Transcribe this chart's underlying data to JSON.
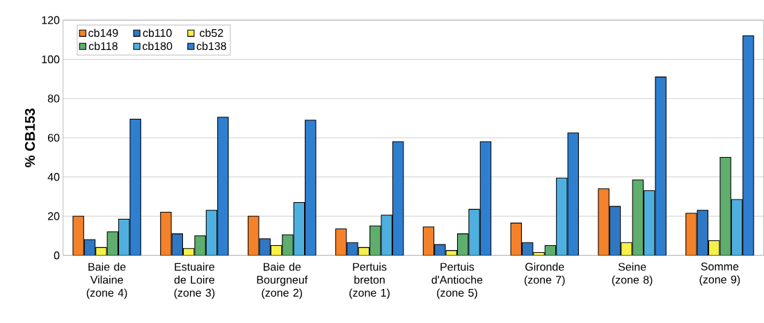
{
  "chart_data": {
    "type": "bar",
    "ylabel": "% CB153",
    "categories": [
      "Baie de Vilaine (zone 4)",
      "Estuaire de Loire (zone 3)",
      "Baie de Bourgneuf (zone 2)",
      "Pertuis breton (zone 1)",
      "Pertuis d'Antioche (zone 5)",
      "Gironde (zone 7)",
      "Seine (zone 8)",
      "Somme (zone 9)"
    ],
    "series": [
      {
        "name": "cb149",
        "color": "#f4822a",
        "values": [
          20,
          22,
          20,
          13.5,
          14.5,
          16.5,
          34,
          21.5
        ]
      },
      {
        "name": "cb110",
        "color": "#2f78c4",
        "values": [
          8,
          11,
          8.5,
          6.5,
          5.5,
          6.5,
          25,
          23
        ]
      },
      {
        "name": "cb52",
        "color": "#f6f04a",
        "values": [
          4,
          3.5,
          5,
          4,
          2.5,
          1.5,
          6.5,
          7.5
        ]
      },
      {
        "name": "cb118",
        "color": "#5fae6e",
        "values": [
          12,
          10,
          10.5,
          15,
          11,
          5,
          38.5,
          50
        ]
      },
      {
        "name": "cb180",
        "color": "#4fb0e0",
        "values": [
          18.5,
          23,
          27,
          20.5,
          23.5,
          39.5,
          33,
          28.5
        ]
      },
      {
        "name": "cb138",
        "color": "#2e7fd0",
        "values": [
          69.5,
          70.5,
          69,
          58,
          58,
          62.5,
          91,
          112
        ]
      }
    ],
    "ylim": [
      0,
      120
    ],
    "yticks": [
      0,
      20,
      40,
      60,
      80,
      100,
      120
    ],
    "grid": "y",
    "legend": "top left"
  }
}
